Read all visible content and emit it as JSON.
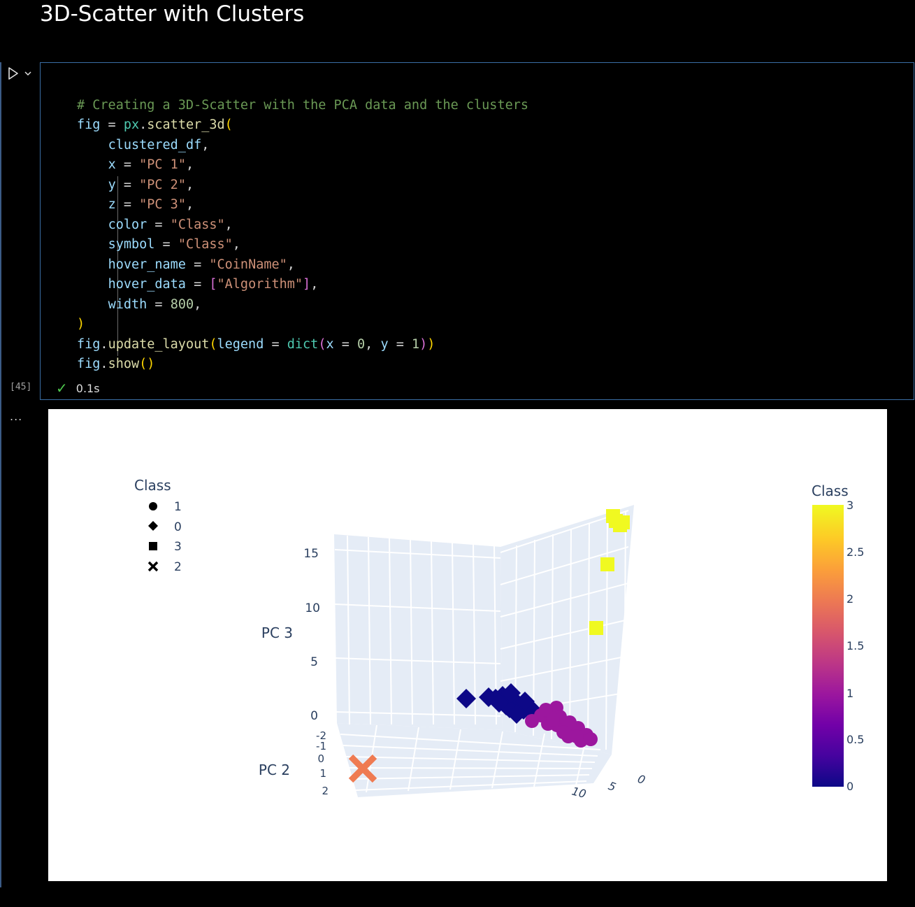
{
  "markdown": {
    "title": "3D-Scatter with Clusters"
  },
  "cell": {
    "execution_count": "[45]",
    "status_time": "0.1s",
    "run_icon": "play-icon",
    "code_lines": [
      "# Creating a 3D-Scatter with the PCA data and the clusters",
      "fig = px.scatter_3d(",
      "    clustered_df,",
      "    x = \"PC 1\",",
      "    y = \"PC 2\",",
      "    z = \"PC 3\",",
      "    color = \"Class\",",
      "    symbol = \"Class\",",
      "    hover_name = \"CoinName\",",
      "    hover_data = [\"Algorithm\"],",
      "    width = 800,",
      ")",
      "fig.update_layout(legend = dict(x = 0, y = 1))",
      "fig.show()"
    ]
  },
  "output": {
    "ellipsis": "..."
  },
  "chart_data": {
    "type": "scatter",
    "dimensions": "3d",
    "x_label": "",
    "y_label": "PC 2",
    "z_label": "PC 3",
    "z_ticks": [
      "15",
      "10",
      "5",
      "0"
    ],
    "y_ticks": [
      "-2",
      "-1",
      "0",
      "1",
      "2"
    ],
    "x_ticks": [
      "0",
      "5",
      "10"
    ],
    "legend": {
      "title": "Class",
      "placement": "top-left",
      "entries": [
        {
          "label": "1",
          "symbol": "circle"
        },
        {
          "label": "0",
          "symbol": "diamond"
        },
        {
          "label": "3",
          "symbol": "square"
        },
        {
          "label": "2",
          "symbol": "x"
        }
      ]
    },
    "colorbar": {
      "title": "Class",
      "ticks": [
        "3",
        "2.5",
        "2",
        "1.5",
        "1",
        "0.5",
        "0"
      ],
      "range": [
        0,
        3
      ],
      "colors": [
        "#0d0887",
        "#46039f",
        "#7201a8",
        "#9c179e",
        "#bd3786",
        "#d8576b",
        "#ed7953",
        "#fb9f3a",
        "#fdca26",
        "#f0f921"
      ]
    },
    "series": [
      {
        "name": "3",
        "symbol": "square",
        "color": "#f0f921"
      },
      {
        "name": "0",
        "symbol": "diamond",
        "color": "#0d0887"
      },
      {
        "name": "1",
        "symbol": "circle",
        "color": "#9c179e"
      },
      {
        "name": "2",
        "symbol": "x",
        "color": "#ef7b52"
      }
    ]
  }
}
